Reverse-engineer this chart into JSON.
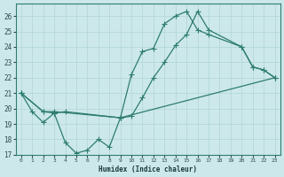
{
  "xlabel": "Humidex (Indice chaleur)",
  "xlim": [
    -0.5,
    23.5
  ],
  "ylim": [
    17,
    26.8
  ],
  "yticks": [
    17,
    18,
    19,
    20,
    21,
    22,
    23,
    24,
    25,
    26
  ],
  "xticks": [
    0,
    1,
    2,
    3,
    4,
    5,
    6,
    7,
    8,
    9,
    10,
    11,
    12,
    13,
    14,
    15,
    16,
    17,
    18,
    19,
    20,
    21,
    22,
    23
  ],
  "background_color": "#cce8ea",
  "grid_color": "#b0d4d6",
  "line_color": "#2e7d6e",
  "curve1_x": [
    0,
    1,
    2,
    3,
    4,
    5,
    6,
    7,
    8,
    9,
    10,
    11,
    12,
    13,
    14,
    15,
    16,
    17,
    20,
    21,
    22,
    23
  ],
  "curve1_y": [
    21.0,
    19.8,
    19.1,
    19.7,
    17.8,
    17.1,
    17.3,
    18.0,
    17.5,
    19.4,
    22.2,
    23.7,
    23.9,
    25.5,
    26.0,
    26.3,
    25.1,
    24.8,
    24.0,
    22.7,
    22.5,
    22.0
  ],
  "curve2_x": [
    0,
    2,
    3,
    4,
    9,
    10,
    11,
    12,
    13,
    14,
    15,
    16,
    17,
    20,
    21,
    22,
    23
  ],
  "curve2_y": [
    21.0,
    19.8,
    19.7,
    19.8,
    19.4,
    19.5,
    20.7,
    22.0,
    23.0,
    24.1,
    24.8,
    26.3,
    25.1,
    24.0,
    22.7,
    22.5,
    22.0
  ],
  "curve3_x": [
    0,
    2,
    3,
    9,
    23
  ],
  "curve3_y": [
    21.0,
    19.8,
    19.8,
    19.4,
    22.0
  ]
}
